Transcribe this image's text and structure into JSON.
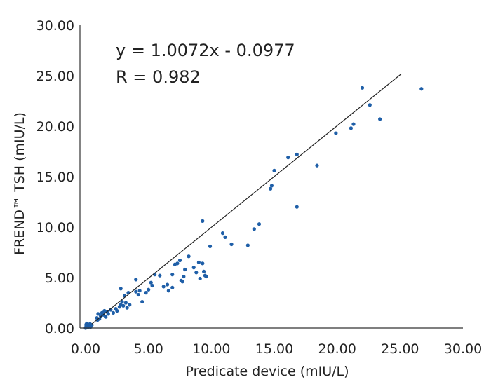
{
  "chart_data": {
    "type": "scatter",
    "xlabel": "Predicate device (mIU/L)",
    "ylabel": "FREND™ TSH (mIU/L)",
    "xlim": [
      0,
      30
    ],
    "ylim": [
      0,
      30
    ],
    "xticks": [
      "0.00",
      "5.00",
      "10.00",
      "15.00",
      "20.00",
      "25.00",
      "30.00"
    ],
    "yticks": [
      "0.00",
      "5.00",
      "10.00",
      "15.00",
      "20.00",
      "25.00",
      "30.00"
    ],
    "grid": false,
    "legend": "none",
    "annotations": [
      "y = 1.0072x - 0.0977",
      "R = 0.982"
    ],
    "regression": {
      "slope": 1.0072,
      "intercept": -0.0977,
      "x_range": [
        0.5,
        25.1
      ]
    },
    "colors": {
      "points": "#1f5fa8",
      "trendline": "#222222",
      "axes": "#333333"
    },
    "points": [
      [
        0.0,
        0.0
      ],
      [
        0.05,
        0.2
      ],
      [
        0.1,
        0.1
      ],
      [
        0.15,
        0.3
      ],
      [
        0.2,
        0.05
      ],
      [
        0.25,
        0.25
      ],
      [
        0.3,
        0.15
      ],
      [
        0.35,
        0.4
      ],
      [
        0.5,
        0.3
      ],
      [
        0.1,
        0.45
      ],
      [
        0.05,
        0.35
      ],
      [
        0.4,
        0.1
      ],
      [
        0.9,
        1.0
      ],
      [
        1.0,
        1.4
      ],
      [
        1.2,
        1.2
      ],
      [
        1.3,
        1.5
      ],
      [
        1.4,
        1.3
      ],
      [
        1.5,
        1.7
      ],
      [
        1.7,
        1.6
      ],
      [
        1.8,
        1.4
      ],
      [
        2.0,
        1.8
      ],
      [
        2.2,
        1.5
      ],
      [
        2.4,
        1.9
      ],
      [
        2.5,
        1.7
      ],
      [
        0.95,
        0.8
      ],
      [
        1.1,
        0.9
      ],
      [
        1.6,
        1.1
      ],
      [
        2.7,
        2.1
      ],
      [
        2.8,
        2.3
      ],
      [
        3.0,
        2.2
      ],
      [
        3.2,
        2.5
      ],
      [
        3.3,
        2.0
      ],
      [
        2.9,
        2.6
      ],
      [
        3.5,
        2.3
      ],
      [
        3.1,
        3.2
      ],
      [
        2.8,
        3.9
      ],
      [
        3.4,
        3.5
      ],
      [
        4.0,
        3.6
      ],
      [
        4.2,
        3.3
      ],
      [
        4.3,
        3.7
      ],
      [
        4.0,
        4.8
      ],
      [
        4.5,
        2.6
      ],
      [
        4.8,
        3.5
      ],
      [
        5.0,
        3.8
      ],
      [
        5.2,
        4.5
      ],
      [
        5.5,
        5.3
      ],
      [
        5.3,
        4.2
      ],
      [
        5.9,
        5.2
      ],
      [
        6.2,
        4.1
      ],
      [
        6.5,
        4.3
      ],
      [
        6.6,
        3.7
      ],
      [
        6.9,
        4.0
      ],
      [
        6.9,
        5.3
      ],
      [
        7.1,
        6.3
      ],
      [
        7.3,
        6.4
      ],
      [
        7.5,
        6.7
      ],
      [
        7.6,
        4.7
      ],
      [
        7.8,
        5.1
      ],
      [
        7.9,
        5.8
      ],
      [
        7.7,
        4.6
      ],
      [
        8.2,
        7.1
      ],
      [
        8.6,
        6.0
      ],
      [
        8.8,
        5.5
      ],
      [
        9.0,
        6.5
      ],
      [
        9.1,
        4.9
      ],
      [
        9.3,
        6.4
      ],
      [
        9.3,
        10.6
      ],
      [
        9.5,
        5.2
      ],
      [
        9.4,
        5.6
      ],
      [
        9.6,
        5.1
      ],
      [
        9.9,
        8.1
      ],
      [
        10.9,
        9.4
      ],
      [
        11.1,
        9.0
      ],
      [
        11.6,
        8.3
      ],
      [
        12.9,
        8.2
      ],
      [
        13.4,
        9.8
      ],
      [
        13.8,
        10.3
      ],
      [
        14.7,
        13.8
      ],
      [
        14.8,
        14.1
      ],
      [
        15.0,
        15.6
      ],
      [
        16.1,
        16.9
      ],
      [
        16.8,
        17.2
      ],
      [
        16.8,
        12.0
      ],
      [
        18.4,
        16.1
      ],
      [
        19.9,
        19.3
      ],
      [
        21.1,
        19.8
      ],
      [
        21.3,
        20.2
      ],
      [
        22.0,
        23.8
      ],
      [
        22.6,
        22.1
      ],
      [
        23.4,
        20.7
      ],
      [
        26.7,
        23.7
      ]
    ]
  }
}
